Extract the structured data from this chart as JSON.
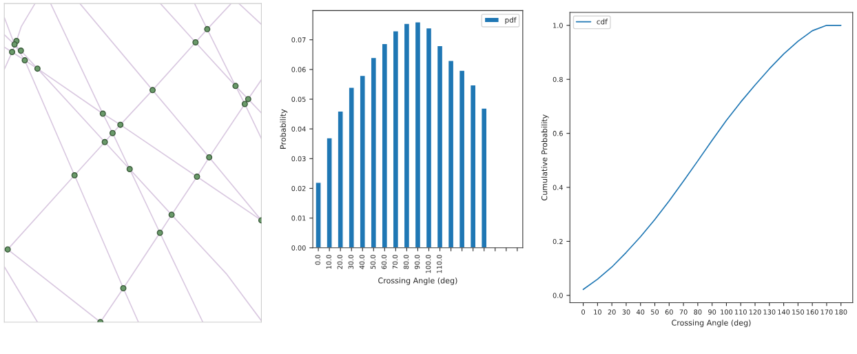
{
  "chart_data": [
    {
      "type": "bar",
      "xlabel": "Crossing Angle (deg)",
      "ylabel": "Probability",
      "categories": [
        "0.0",
        "10.0",
        "20.0",
        "30.0",
        "40.0",
        "50.0",
        "60.0",
        "70.0",
        "80.0",
        "90.0",
        "100.0",
        "110.0",
        null,
        null,
        null,
        null,
        null,
        null,
        null
      ],
      "series": [
        {
          "name": "pdf",
          "color": "#1f77b4",
          "values": [
            0.022,
            0.037,
            0.046,
            0.054,
            0.058,
            0.064,
            0.0687,
            0.073,
            0.0755,
            0.076,
            0.074,
            0.068,
            0.063,
            0.0597,
            0.0548,
            0.047,
            null,
            null,
            null
          ]
        }
      ],
      "ylim": [
        0,
        0.0798
      ],
      "yticks": [
        {
          "value": 0,
          "label": "0.00"
        },
        {
          "value": 0.01,
          "label": "0.01"
        },
        {
          "value": 0.02,
          "label": "0.02"
        },
        {
          "value": 0.03,
          "label": "0.03"
        },
        {
          "value": 0.04,
          "label": "0.04"
        },
        {
          "value": 0.05,
          "label": "0.05"
        },
        {
          "value": 0.06,
          "label": "0.06"
        },
        {
          "value": 0.07,
          "label": "0.07"
        }
      ],
      "legend": "top right"
    },
    {
      "type": "line",
      "xlabel": "Crossing Angle (deg)",
      "ylabel": "Cumulative Probability",
      "x": [
        0,
        10,
        20,
        30,
        40,
        50,
        60,
        70,
        80,
        90,
        100,
        110,
        120,
        130,
        140,
        150,
        160,
        170,
        180
      ],
      "series": [
        {
          "name": "cdf",
          "color": "#1f77b4",
          "values": [
            0.022,
            0.06,
            0.105,
            0.159,
            0.217,
            0.281,
            0.35,
            0.423,
            0.498,
            0.574,
            0.648,
            0.716,
            0.779,
            0.839,
            0.894,
            0.941,
            0.98,
            1.0,
            1.0
          ]
        }
      ],
      "xlim": [
        -9.3,
        188.2
      ],
      "xticks": [
        0,
        10,
        20,
        30,
        40,
        50,
        60,
        70,
        80,
        90,
        100,
        110,
        120,
        130,
        140,
        150,
        160,
        170,
        180
      ],
      "ylim": [
        -0.027,
        1.048
      ],
      "yticks": [
        {
          "value": 0,
          "label": "0.0"
        },
        {
          "value": 0.2,
          "label": "0.2"
        },
        {
          "value": 0.4,
          "label": "0.4"
        },
        {
          "value": 0.6,
          "label": "0.6"
        },
        {
          "value": 0.8,
          "label": "0.8"
        },
        {
          "value": 1.0,
          "label": "1.0"
        }
      ],
      "legend": "top left"
    }
  ]
}
